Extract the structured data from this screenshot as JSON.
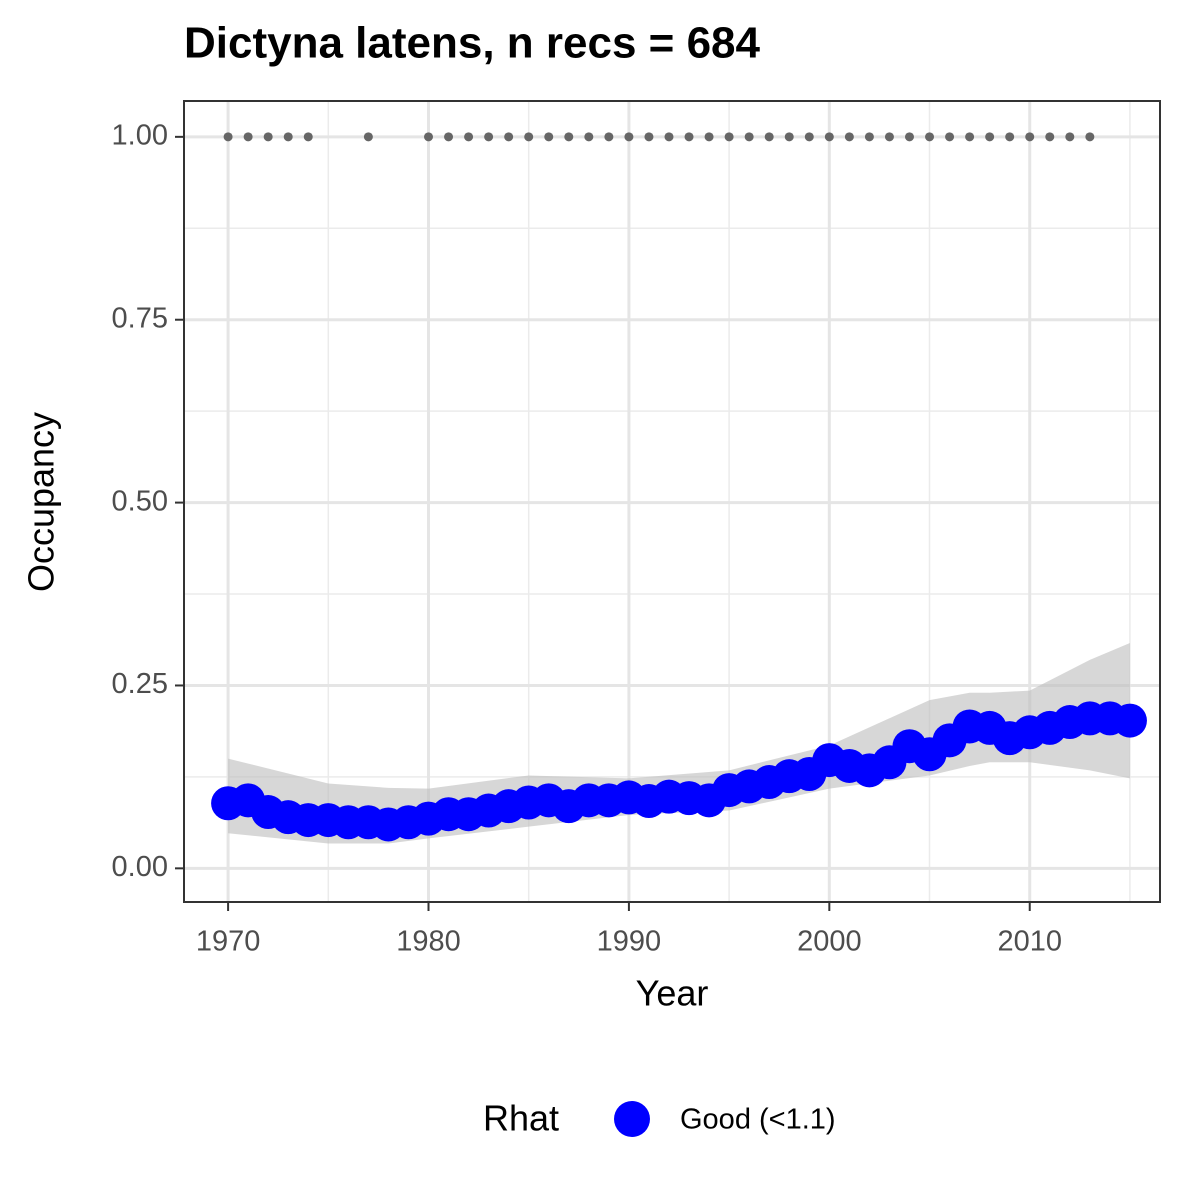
{
  "chart_data": {
    "type": "occupancy",
    "title": "Dictyna latens, n recs = 684",
    "x_label": "Year",
    "y_label": "Occupancy",
    "xlim": [
      1967.8,
      2016.5
    ],
    "ylim": [
      -0.046,
      1.049
    ],
    "xticks": [
      1970,
      1980,
      1990,
      2000,
      2010
    ],
    "yticks": [
      {
        "value": 0,
        "label": "0.00"
      },
      {
        "value": 0.25,
        "label": "0.25"
      },
      {
        "value": 0.5,
        "label": "0.50"
      },
      {
        "value": 0.75,
        "label": "0.75"
      },
      {
        "value": 1,
        "label": "1.00"
      }
    ],
    "grid": true,
    "legend_title": "Rhat",
    "series": [
      {
        "name": "Good (<1.1)",
        "color": "#0000ff",
        "x": [
          1970,
          1971,
          1972,
          1973,
          1974,
          1975,
          1976,
          1977,
          1978,
          1979,
          1980,
          1981,
          1982,
          1983,
          1984,
          1985,
          1986,
          1987,
          1988,
          1989,
          1990,
          1991,
          1992,
          1993,
          1994,
          1995,
          1996,
          1997,
          1998,
          1999,
          2000,
          2001,
          2002,
          2003,
          2004,
          2005,
          2006,
          2007,
          2008,
          2009,
          2010,
          2011,
          2012,
          2013,
          2014,
          2015
        ],
        "values": [
          0.089,
          0.093,
          0.077,
          0.07,
          0.066,
          0.066,
          0.063,
          0.063,
          0.06,
          0.063,
          0.068,
          0.074,
          0.074,
          0.079,
          0.085,
          0.09,
          0.093,
          0.085,
          0.093,
          0.093,
          0.097,
          0.092,
          0.098,
          0.096,
          0.093,
          0.107,
          0.112,
          0.118,
          0.126,
          0.129,
          0.148,
          0.14,
          0.134,
          0.145,
          0.167,
          0.156,
          0.175,
          0.194,
          0.192,
          0.178,
          0.186,
          0.192,
          0.2,
          0.205,
          0.205,
          0.202
        ]
      }
    ],
    "band": {
      "color": "#bdbdbd",
      "x": [
        1970,
        1975,
        1978,
        1980,
        1985,
        1990,
        1995,
        2000,
        2005,
        2007,
        2008,
        2010,
        2013,
        2015
      ],
      "lower": [
        0.048,
        0.034,
        0.034,
        0.041,
        0.057,
        0.073,
        0.079,
        0.109,
        0.127,
        0.14,
        0.145,
        0.145,
        0.134,
        0.123
      ],
      "upper": [
        0.15,
        0.116,
        0.11,
        0.109,
        0.127,
        0.123,
        0.134,
        0.168,
        0.23,
        0.24,
        0.24,
        0.243,
        0.285,
        0.308
      ]
    },
    "detections": {
      "color": "#666666",
      "x": [
        1970,
        1971,
        1972,
        1973,
        1974,
        1977,
        1980,
        1981,
        1982,
        1983,
        1984,
        1985,
        1986,
        1987,
        1988,
        1989,
        1990,
        1991,
        1992,
        1993,
        1994,
        1995,
        1996,
        1997,
        1998,
        1999,
        2000,
        2001,
        2002,
        2003,
        2004,
        2005,
        2006,
        2007,
        2008,
        2009,
        2010,
        2011,
        2012,
        2013
      ],
      "values": [
        1,
        1,
        1,
        1,
        1,
        1,
        1,
        1,
        1,
        1,
        1,
        1,
        1,
        1,
        1,
        1,
        1,
        1,
        1,
        1,
        1,
        1,
        1,
        1,
        1,
        1,
        1,
        1,
        1,
        1,
        1,
        1,
        1,
        1,
        1,
        1,
        1,
        1,
        1,
        1
      ]
    }
  }
}
